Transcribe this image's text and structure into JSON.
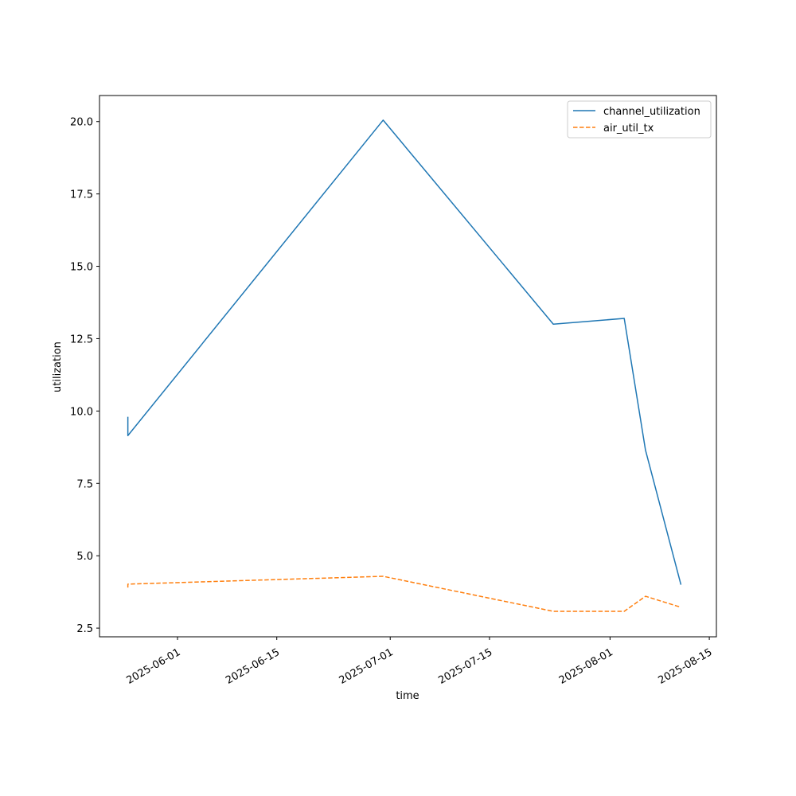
{
  "chart_data": {
    "type": "line",
    "title": "",
    "xlabel": "time",
    "ylabel": "utilization",
    "x_tick_labels": [
      "2025-06-01",
      "2025-06-15",
      "2025-07-01",
      "2025-07-15",
      "2025-08-01",
      "2025-08-15"
    ],
    "y_tick_labels": [
      "2.5",
      "5.0",
      "7.5",
      "10.0",
      "12.5",
      "15.0",
      "17.5",
      "20.0"
    ],
    "ylim": [
      2.2,
      20.9
    ],
    "xlim": [
      "2025-05-21",
      "2025-08-16"
    ],
    "grid": false,
    "legend_position": "top-right",
    "series": [
      {
        "name": "channel_utilization",
        "color": "#1f77b4",
        "style": "solid",
        "points": [
          {
            "x": "2025-05-25",
            "y": 9.8
          },
          {
            "x": "2025-05-25",
            "y": 9.15
          },
          {
            "x": "2025-06-30",
            "y": 20.05
          },
          {
            "x": "2025-07-24",
            "y": 13.0
          },
          {
            "x": "2025-08-03",
            "y": 13.2
          },
          {
            "x": "2025-08-06",
            "y": 8.65
          },
          {
            "x": "2025-08-11",
            "y": 4.0
          }
        ]
      },
      {
        "name": "air_util_tx",
        "color": "#ff7f0e",
        "style": "dashed",
        "points": [
          {
            "x": "2025-05-25",
            "y": 3.9
          },
          {
            "x": "2025-05-25",
            "y": 4.02
          },
          {
            "x": "2025-06-30",
            "y": 4.29
          },
          {
            "x": "2025-07-24",
            "y": 3.08
          },
          {
            "x": "2025-08-03",
            "y": 3.08
          },
          {
            "x": "2025-08-06",
            "y": 3.6
          },
          {
            "x": "2025-08-11",
            "y": 3.22
          }
        ]
      }
    ]
  }
}
